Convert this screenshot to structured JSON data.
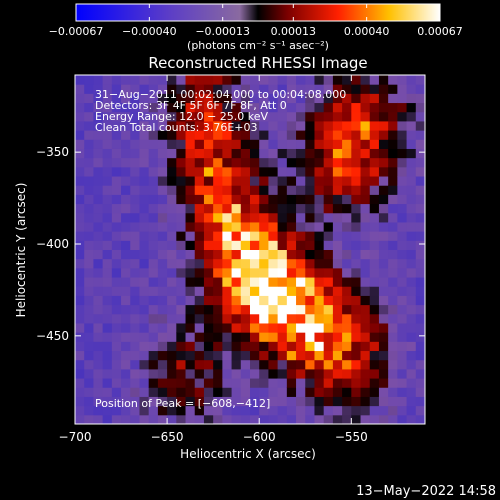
{
  "chart_data": {
    "type": "heatmap",
    "title": "Reconstructed RHESSI Image",
    "xlabel": "Heliocentric X (arcsec)",
    "ylabel": "Heliocentric Y (arcsec)",
    "xlim": [
      -700,
      -510
    ],
    "ylim": [
      -498,
      -308
    ],
    "x_ticks": [
      -700,
      -650,
      -600,
      -550
    ],
    "x_tick_labels": [
      "−700",
      "−650",
      "−600",
      "−550"
    ],
    "y_ticks": [
      -450,
      -400,
      -350
    ],
    "y_tick_labels": [
      "−450",
      "−400",
      "−350"
    ],
    "colorbar": {
      "range": [
        -0.00067,
        0.00067
      ],
      "ticks": [
        -0.00067,
        -0.0004,
        -0.00013,
        0.00013,
        0.0004,
        0.00067
      ],
      "tick_labels": [
        "−0.00067",
        "−0.00040",
        "−0.00013",
        "0.00013",
        "0.00040",
        "0.00067"
      ],
      "unit_label": "(photons cm⁻² s⁻¹ asec⁻²)"
    },
    "annotations": [
      "31−Aug−2011 00:02:04.000 to 00:04:08.000",
      "Detectors: 3F 4F 5F 6F 7F 8F, Att 0",
      "Energy Range: 12.0 − 25.0 keV",
      "Clean     Total counts: 3.76E+03"
    ],
    "peak_label": "Position of Peak = [−608,−412]",
    "peak_position": [
      -608,
      -412
    ],
    "footer": "13−May−2022 14:58",
    "bright_ridge": [
      {
        "x": -630,
        "y": -330,
        "v": 0.00045
      },
      {
        "x": -620,
        "y": -372,
        "v": 0.00052
      },
      {
        "x": -608,
        "y": -412,
        "v": 0.00067
      },
      {
        "x": -590,
        "y": -428,
        "v": 0.00058
      },
      {
        "x": -572,
        "y": -445,
        "v": 0.0005
      },
      {
        "x": -550,
        "y": -460,
        "v": 0.00042
      },
      {
        "x": -555,
        "y": -355,
        "v": 0.00048
      },
      {
        "x": -540,
        "y": -330,
        "v": 0.00035
      },
      {
        "x": -640,
        "y": -470,
        "v": 0.0003
      }
    ],
    "colors": {
      "background": "#000000",
      "map_low": "#0000ff",
      "map_mid_neg": "#7a4fa8",
      "map_zero": "#000000",
      "map_mid_pos": "#ff2000",
      "map_high": "#ffffff"
    }
  }
}
